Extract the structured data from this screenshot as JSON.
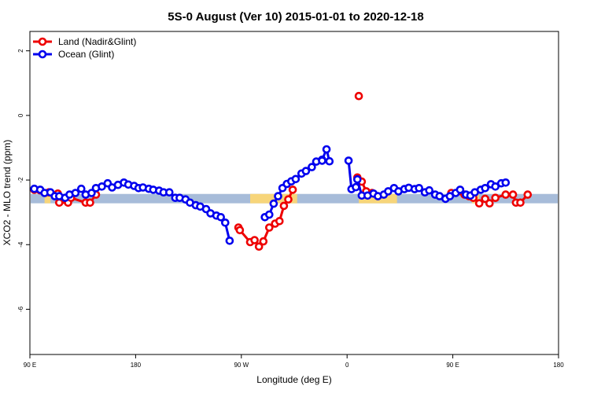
{
  "chart_data": {
    "type": "line",
    "title": "5S-0 August (Ver 10)   2015-01-01 to 2020-12-18",
    "xlabel": "Longitude (deg E)",
    "ylabel": "XCO2 - MLO trend (ppm)",
    "xlim": [
      90,
      450
    ],
    "ylim": [
      -7.4,
      2.6
    ],
    "x_ticks": [
      {
        "value": 90,
        "label": "90 E"
      },
      {
        "value": 162,
        "label": "180"
      },
      {
        "value": 234,
        "label": "90 W"
      },
      {
        "value": 306,
        "label": "0"
      },
      {
        "value": 378,
        "label": "90 E"
      },
      {
        "value": 450,
        "label": "180"
      }
    ],
    "y_ticks": [
      {
        "value": 2,
        "label": "2"
      },
      {
        "value": 0,
        "label": "0"
      },
      {
        "value": -2,
        "label": "-2"
      },
      {
        "value": -4,
        "label": "-4"
      },
      {
        "value": -6,
        "label": "-6"
      }
    ],
    "grid": false,
    "legend_position": "top-left",
    "surface_band": {
      "y_range": [
        -2.72,
        -2.43
      ],
      "ocean_color": "#a7bcd9",
      "land_color": "#f7d57a",
      "land_x_ranges": [
        [
          100,
          104
        ],
        [
          240,
          272
        ],
        [
          314,
          340
        ],
        [
          391,
          396
        ]
      ]
    },
    "series": [
      {
        "name": "Land (Nadir&Glint)",
        "color": "#ee0000",
        "segments": [
          [
            [
              93,
              -2.3
            ],
            [
              97,
              -2.32
            ],
            [
              103,
              -2.38
            ],
            [
              109,
              -2.42
            ],
            [
              110,
              -2.7
            ],
            [
              116,
              -2.7
            ],
            [
              118,
              -2.55
            ],
            [
              128,
              -2.7
            ],
            [
              131,
              -2.7
            ],
            [
              135,
              -2.45
            ]
          ],
          [
            [
              232,
              -3.47
            ],
            [
              233,
              -3.55
            ],
            [
              240,
              -3.92
            ],
            [
              243,
              -3.86
            ],
            [
              246,
              -4.06
            ],
            [
              249,
              -3.9
            ],
            [
              253,
              -3.47
            ],
            [
              257,
              -3.35
            ],
            [
              260,
              -3.27
            ],
            [
              263,
              -2.8
            ],
            [
              266,
              -2.6
            ],
            [
              269,
              -2.3
            ]
          ],
          [
            [
              314,
              0.6
            ]
          ],
          [
            [
              313,
              -1.92
            ],
            [
              316,
              -2.05
            ],
            [
              319,
              -2.35
            ],
            [
              323,
              -2.4
            ]
          ],
          [
            [
              377,
              -2.4
            ],
            [
              386,
              -2.45
            ],
            [
              389,
              -2.5
            ],
            [
              392,
              -2.55
            ],
            [
              396,
              -2.72
            ],
            [
              400,
              -2.58
            ],
            [
              403,
              -2.72
            ],
            [
              407,
              -2.55
            ],
            [
              414,
              -2.45
            ],
            [
              419,
              -2.45
            ],
            [
              421,
              -2.7
            ],
            [
              424,
              -2.7
            ],
            [
              429,
              -2.45
            ]
          ]
        ]
      },
      {
        "name": "Ocean (Glint)",
        "color": "#0000ee",
        "segments": [
          [
            [
              93,
              -2.27
            ],
            [
              97,
              -2.3
            ],
            [
              100,
              -2.4
            ],
            [
              104,
              -2.38
            ],
            [
              107,
              -2.5
            ],
            [
              110,
              -2.5
            ],
            [
              114,
              -2.55
            ],
            [
              117,
              -2.45
            ],
            [
              121,
              -2.4
            ],
            [
              125,
              -2.27
            ],
            [
              128,
              -2.45
            ],
            [
              132,
              -2.4
            ],
            [
              135,
              -2.25
            ],
            [
              139,
              -2.2
            ],
            [
              143,
              -2.1
            ],
            [
              146,
              -2.23
            ],
            [
              150,
              -2.15
            ],
            [
              154,
              -2.08
            ],
            [
              157,
              -2.14
            ],
            [
              161,
              -2.18
            ],
            [
              164,
              -2.25
            ],
            [
              167,
              -2.23
            ],
            [
              171,
              -2.27
            ],
            [
              174,
              -2.3
            ],
            [
              178,
              -2.33
            ],
            [
              181,
              -2.38
            ],
            [
              185,
              -2.38
            ],
            [
              189,
              -2.55
            ],
            [
              192,
              -2.55
            ],
            [
              196,
              -2.6
            ],
            [
              199,
              -2.7
            ],
            [
              203,
              -2.78
            ],
            [
              206,
              -2.82
            ],
            [
              210,
              -2.9
            ],
            [
              213,
              -3.03
            ],
            [
              217,
              -3.1
            ],
            [
              220,
              -3.15
            ],
            [
              223,
              -3.32
            ],
            [
              226,
              -3.88
            ]
          ],
          [
            [
              250,
              -3.15
            ],
            [
              253,
              -3.07
            ],
            [
              256,
              -2.73
            ],
            [
              259,
              -2.5
            ],
            [
              262,
              -2.25
            ],
            [
              265,
              -2.12
            ],
            [
              268,
              -2.04
            ],
            [
              271,
              -1.97
            ],
            [
              275,
              -1.8
            ],
            [
              278,
              -1.72
            ],
            [
              282,
              -1.6
            ],
            [
              285,
              -1.43
            ],
            [
              289,
              -1.37
            ],
            [
              292,
              -1.05
            ],
            [
              294,
              -1.42
            ]
          ],
          [
            [
              289,
              -1.4
            ]
          ],
          [
            [
              307,
              -1.4
            ],
            [
              309,
              -2.28
            ],
            [
              312,
              -2.22
            ],
            [
              313,
              -1.98
            ],
            [
              316,
              -2.48
            ],
            [
              320,
              -2.48
            ],
            [
              324,
              -2.42
            ],
            [
              327,
              -2.5
            ],
            [
              331,
              -2.45
            ],
            [
              334,
              -2.35
            ],
            [
              338,
              -2.25
            ],
            [
              341,
              -2.35
            ],
            [
              345,
              -2.28
            ],
            [
              348,
              -2.24
            ],
            [
              352,
              -2.28
            ],
            [
              355,
              -2.25
            ],
            [
              359,
              -2.38
            ],
            [
              362,
              -2.32
            ],
            [
              366,
              -2.45
            ],
            [
              369,
              -2.5
            ],
            [
              373,
              -2.58
            ],
            [
              376,
              -2.5
            ],
            [
              380,
              -2.4
            ],
            [
              383,
              -2.3
            ],
            [
              387,
              -2.45
            ],
            [
              390,
              -2.48
            ],
            [
              393,
              -2.38
            ],
            [
              397,
              -2.3
            ],
            [
              400,
              -2.25
            ],
            [
              404,
              -2.13
            ],
            [
              407,
              -2.2
            ],
            [
              411,
              -2.1
            ],
            [
              414,
              -2.08
            ]
          ]
        ]
      }
    ]
  }
}
